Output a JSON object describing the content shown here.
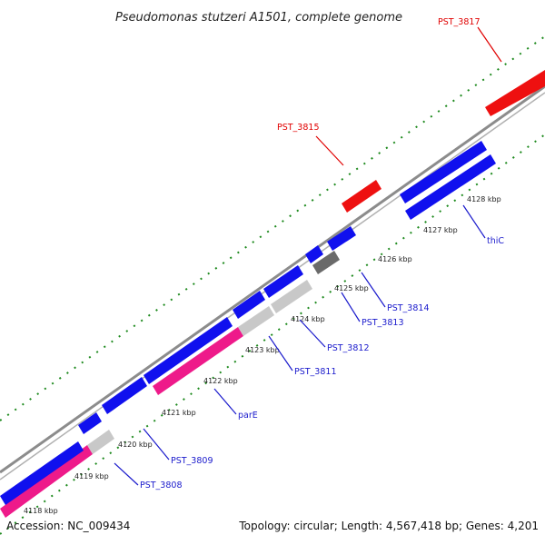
{
  "title": "Pseudomonas stutzeri A1501, complete genome",
  "footer": {
    "accession": "Accession: NC_009434",
    "topology": "Topology: circular; Length: 4,567,418 bp; Genes: 4,201"
  },
  "colors": {
    "backbone": "#8c8c8c",
    "dots": "#1e8a1e",
    "label_blue": "#1a1acc",
    "label_red": "#e00000"
  },
  "ticks": [
    "4118 kbp",
    "4119 kbp",
    "4120 kbp",
    "4121 kbp",
    "4122 kbp",
    "4123 kbp",
    "4124 kbp",
    "4125 kbp",
    "4126 kbp",
    "4127 kbp",
    "4128 kbp"
  ],
  "genes": [
    {
      "label": "PST_3808",
      "color": "blue"
    },
    {
      "label": "PST_3809",
      "color": "blue"
    },
    {
      "label": "parE",
      "color": "blue"
    },
    {
      "label": "PST_3811",
      "color": "blue"
    },
    {
      "label": "PST_3812",
      "color": "blue"
    },
    {
      "label": "PST_3813",
      "color": "blue"
    },
    {
      "label": "PST_3814",
      "color": "blue"
    },
    {
      "label": "thiC",
      "color": "blue"
    },
    {
      "label": "PST_3815",
      "color": "red"
    },
    {
      "label": "PST_3817",
      "color": "red"
    }
  ]
}
